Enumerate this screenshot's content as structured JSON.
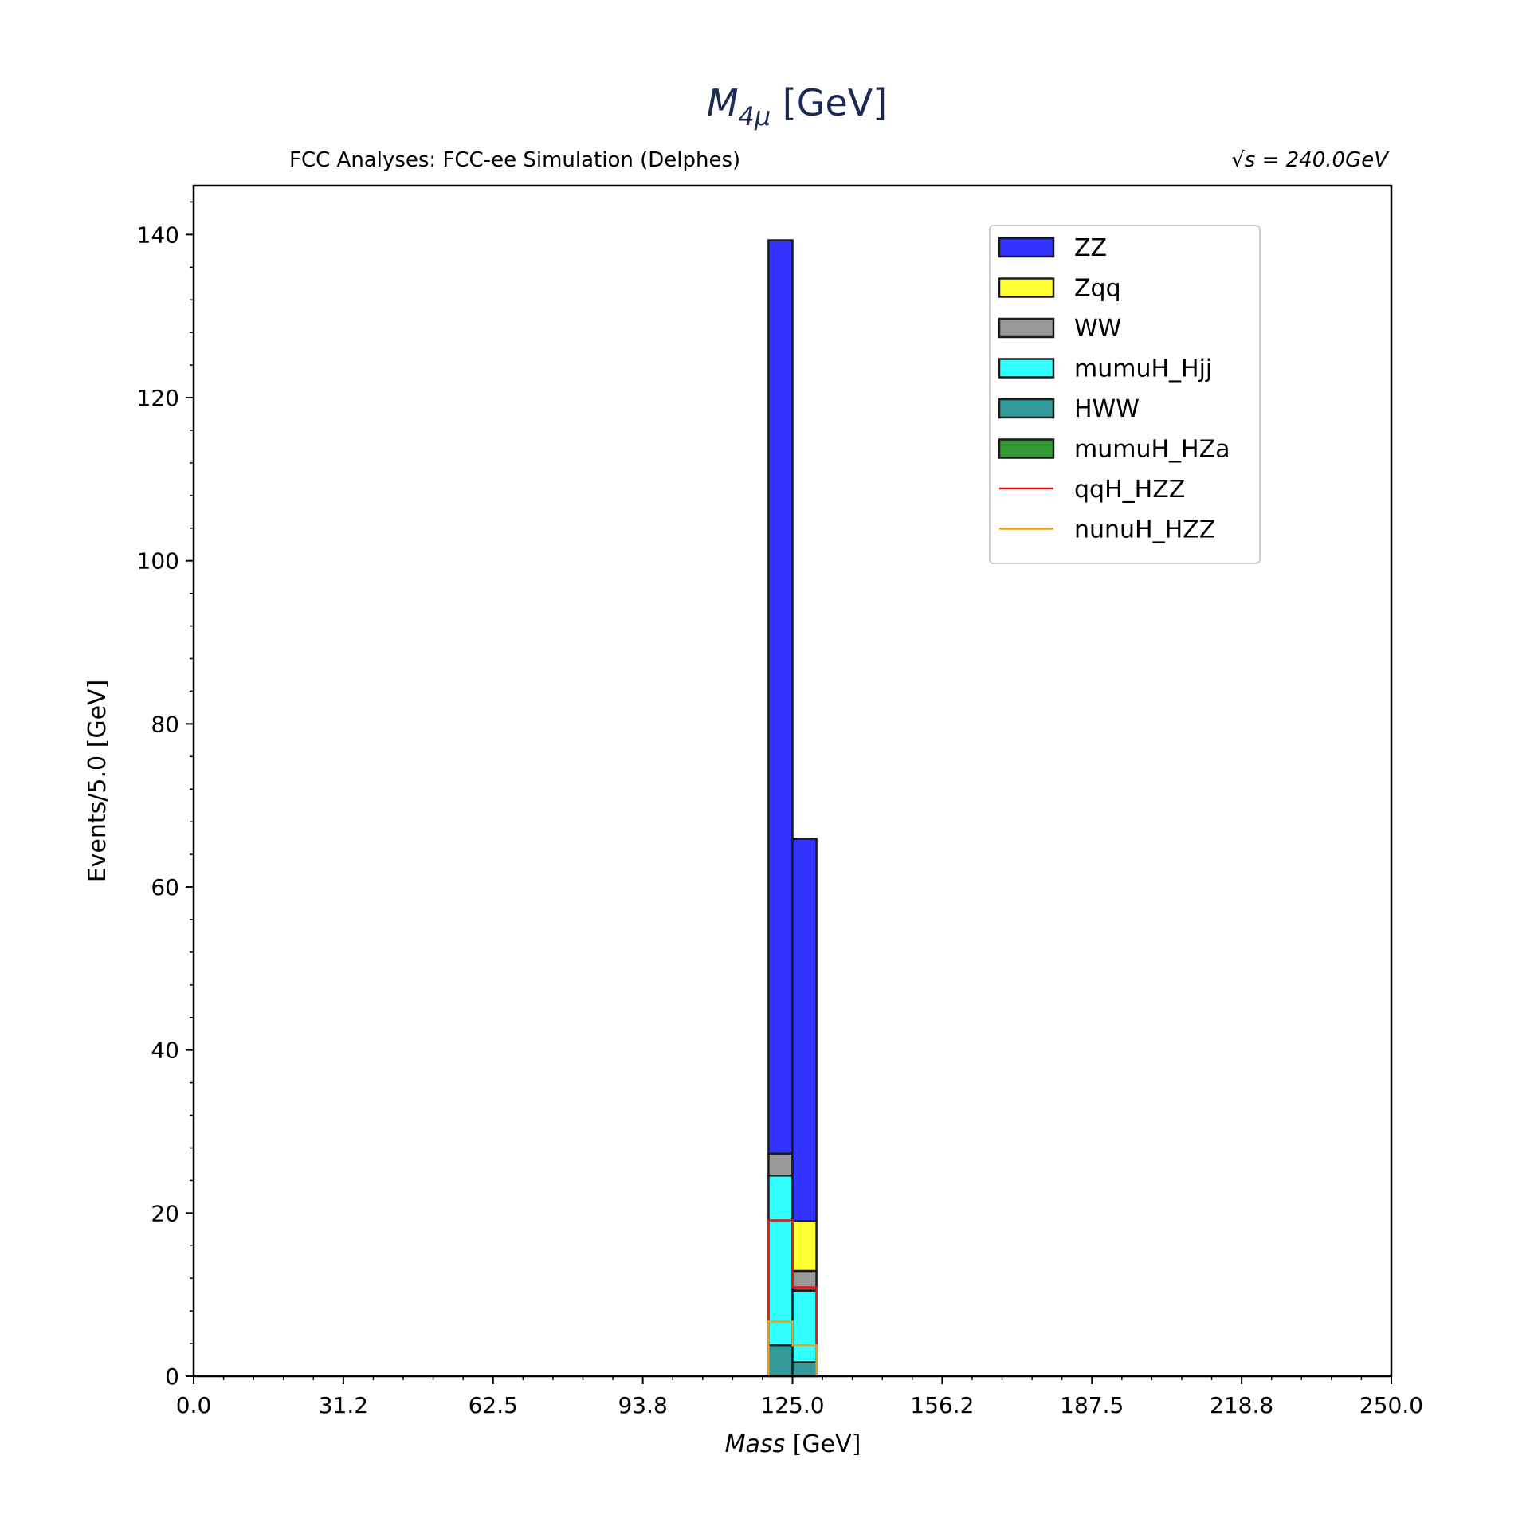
{
  "chart_data": {
    "type": "bar",
    "title_main": "M",
    "title_sub": "4μ",
    "title_unit": " [GeV]",
    "subtitle_left": "FCC Analyses: FCC-ee Simulation (Delphes)",
    "energy_label": "√s = 240.0GeV",
    "xlabel_italic": "Mass",
    "xlabel_unit": " [GeV]",
    "ylabel": "Events/5.0 [GeV]",
    "xlim": [
      0,
      250
    ],
    "ylim": [
      0,
      146
    ],
    "xticks": [
      "0.0",
      "31.2",
      "62.5",
      "93.8",
      "125.0",
      "156.2",
      "187.5",
      "218.8",
      "250.0"
    ],
    "yticks": [
      "0",
      "20",
      "40",
      "60",
      "80",
      "100",
      "120",
      "140"
    ],
    "bins": [
      [
        120,
        125
      ],
      [
        125,
        130
      ]
    ],
    "stacked_series": [
      {
        "name": "HWW",
        "color": "#339999",
        "values": [
          3.8,
          1.7
        ]
      },
      {
        "name": "mumuH_Hjj",
        "color": "#33ffff",
        "values": [
          20.8,
          8.8
        ]
      },
      {
        "name": "WW",
        "color": "#999999",
        "values": [
          2.7,
          2.4
        ]
      },
      {
        "name": "Zqq",
        "color": "#ffff33",
        "values": [
          0.0,
          6.1
        ]
      },
      {
        "name": "mumuH_HZa",
        "color": "#339933",
        "values": [
          0.0,
          0.0
        ]
      },
      {
        "name": "ZZ",
        "color": "#3333ff",
        "values": [
          112.0,
          46.9
        ]
      }
    ],
    "line_series": [
      {
        "name": "qqH_HZZ",
        "color": "#ee1111",
        "values": [
          19.1,
          10.9
        ]
      },
      {
        "name": "nunuH_HZZ",
        "color": "#f0a020",
        "values": [
          6.7,
          3.8
        ]
      }
    ],
    "legend": [
      {
        "name": "ZZ",
        "kind": "patch",
        "color": "#3333ff"
      },
      {
        "name": "Zqq",
        "kind": "patch",
        "color": "#ffff33"
      },
      {
        "name": "WW",
        "kind": "patch",
        "color": "#999999"
      },
      {
        "name": "mumuH_Hjj",
        "kind": "patch",
        "color": "#33ffff"
      },
      {
        "name": "HWW",
        "kind": "patch",
        "color": "#339999"
      },
      {
        "name": "mumuH_HZa",
        "kind": "patch",
        "color": "#339933"
      },
      {
        "name": "qqH_HZZ",
        "kind": "line",
        "color": "#ee1111"
      },
      {
        "name": "nunuH_HZZ",
        "kind": "line",
        "color": "#f0a020"
      }
    ],
    "legend_position": "top-right",
    "grid": false
  }
}
